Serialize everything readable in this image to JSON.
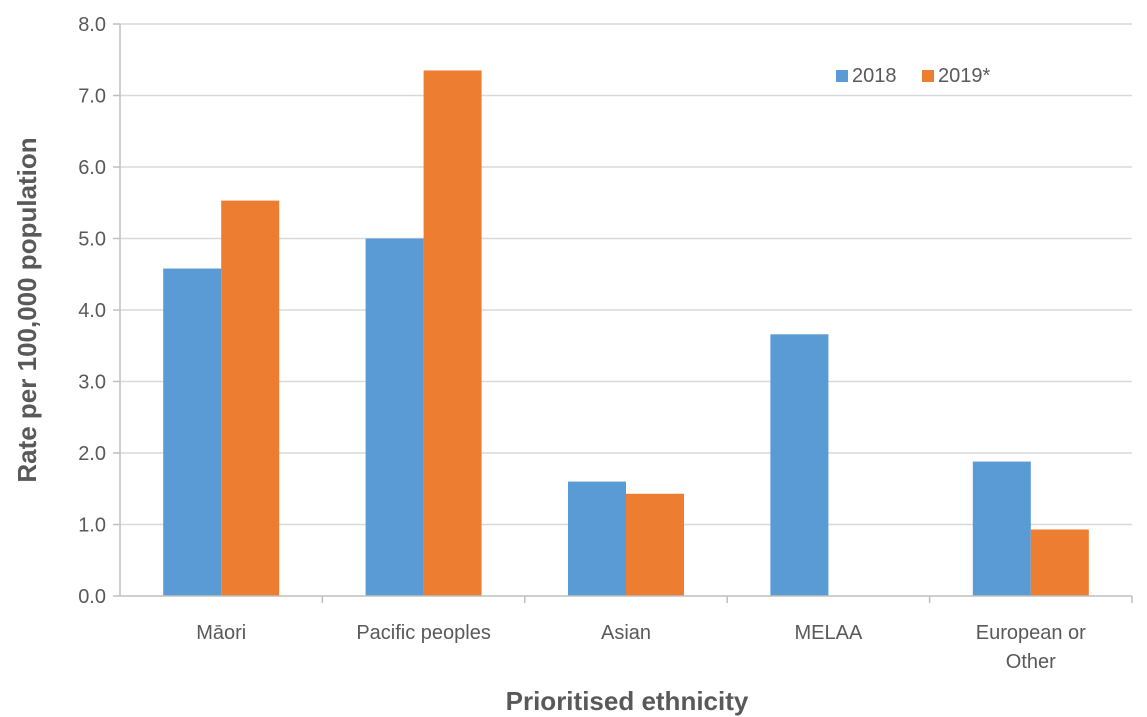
{
  "chart_data": {
    "type": "bar",
    "categories": [
      [
        "Māori"
      ],
      [
        "Pacific peoples"
      ],
      [
        "Asian"
      ],
      [
        "MELAA"
      ],
      [
        "European or",
        "Other"
      ]
    ],
    "series": [
      {
        "name": "2018",
        "color": "#5B9BD5",
        "values": [
          4.58,
          5.0,
          1.6,
          3.66,
          1.88
        ]
      },
      {
        "name": "2019*",
        "color": "#ED7D31",
        "values": [
          5.53,
          7.35,
          1.43,
          null,
          0.93
        ]
      }
    ],
    "xlabel": "Prioritised ethnicity",
    "ylabel": "Rate per 100,000 population",
    "ylim": [
      0,
      8
    ],
    "yticks": [
      "0.0",
      "1.0",
      "2.0",
      "3.0",
      "4.0",
      "5.0",
      "6.0",
      "7.0",
      "8.0"
    ],
    "grid": true,
    "legend_position": "top-right"
  }
}
